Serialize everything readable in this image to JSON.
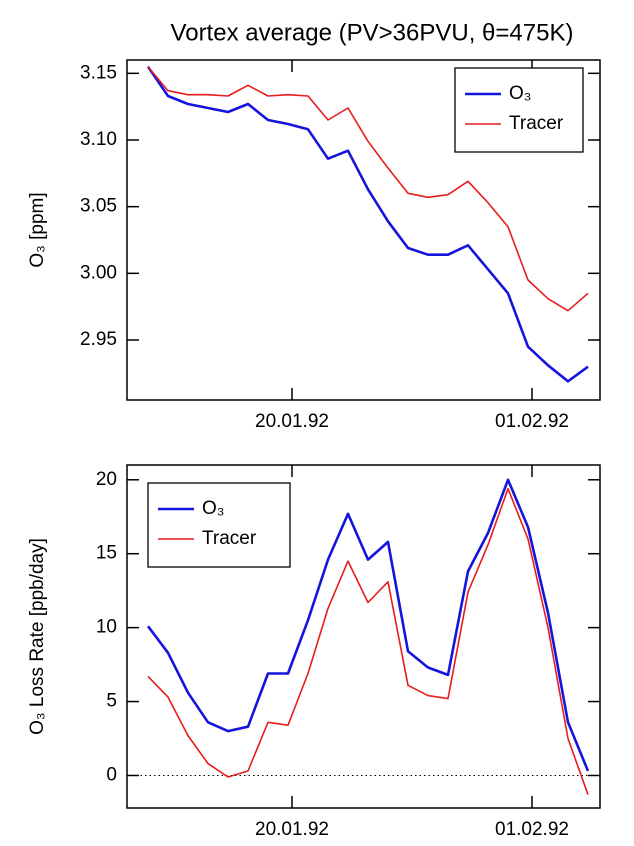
{
  "chart_data": [
    {
      "type": "line",
      "title": "Vortex average (PV>36PVU, θ=475K)",
      "y_label": "O₃ [ppm]",
      "x": [
        0,
        1,
        2,
        3,
        4,
        5,
        6,
        7,
        8,
        9,
        10,
        11,
        12,
        13,
        14,
        15,
        16,
        17,
        18,
        19,
        20,
        21,
        22
      ],
      "xlim": [
        -1.05,
        22.6
      ],
      "xticks": [
        {
          "value": 7.2,
          "label": "20.01.92"
        },
        {
          "value": 19.2,
          "label": "01.02.92"
        }
      ],
      "ylim": [
        2.905,
        3.16
      ],
      "yticks": [
        {
          "value": 2.95,
          "label": "2.95"
        },
        {
          "value": 3.0,
          "label": "3.00"
        },
        {
          "value": 3.05,
          "label": "3.05"
        },
        {
          "value": 3.1,
          "label": "3.10"
        },
        {
          "value": 3.15,
          "label": "3.15"
        }
      ],
      "legend": "upper right",
      "series": [
        {
          "name": "O₃",
          "color": "#1414dc",
          "values": [
            3.155,
            3.133,
            3.127,
            3.124,
            3.121,
            3.127,
            3.115,
            3.112,
            3.108,
            3.086,
            3.092,
            3.063,
            3.039,
            3.019,
            3.014,
            3.014,
            3.021,
            3.003,
            2.985,
            2.945,
            2.931,
            2.919,
            2.93
          ]
        },
        {
          "name": "Tracer",
          "color": "#e81c1c",
          "values": [
            3.155,
            3.137,
            3.134,
            3.134,
            3.133,
            3.141,
            3.133,
            3.134,
            3.133,
            3.115,
            3.124,
            3.099,
            3.079,
            3.06,
            3.057,
            3.059,
            3.069,
            3.053,
            3.035,
            2.995,
            2.981,
            2.972,
            2.985
          ]
        }
      ]
    },
    {
      "type": "line",
      "y_label": "O₃ Loss Rate [ppb/day]",
      "x": [
        0,
        1,
        2,
        3,
        4,
        5,
        6,
        7,
        8,
        9,
        10,
        11,
        12,
        13,
        14,
        15,
        16,
        17,
        18,
        19,
        20,
        21,
        22
      ],
      "xlim": [
        -1.05,
        22.6
      ],
      "xticks": [
        {
          "value": 7.2,
          "label": "20.01.92"
        },
        {
          "value": 19.2,
          "label": "01.02.92"
        }
      ],
      "ylim": [
        -2.2,
        21.0
      ],
      "yticks": [
        0,
        5,
        10,
        15,
        20
      ],
      "reference_line": 0,
      "legend": "upper left",
      "series": [
        {
          "name": "O₃",
          "color": "#1414dc",
          "values": [
            10.1,
            8.3,
            5.6,
            3.6,
            3.0,
            3.3,
            6.9,
            6.9,
            10.5,
            14.6,
            17.7,
            14.6,
            15.8,
            8.4,
            7.3,
            6.8,
            13.8,
            16.4,
            20.0,
            16.8,
            11.0,
            3.6,
            0.3
          ]
        },
        {
          "name": "Tracer",
          "color": "#e81c1c",
          "values": [
            6.7,
            5.3,
            2.7,
            0.8,
            -0.1,
            0.3,
            3.6,
            3.4,
            6.9,
            11.3,
            14.5,
            11.7,
            13.1,
            6.1,
            5.4,
            5.2,
            12.4,
            15.6,
            19.4,
            16.0,
            10.0,
            2.5,
            -1.3
          ]
        }
      ]
    }
  ]
}
